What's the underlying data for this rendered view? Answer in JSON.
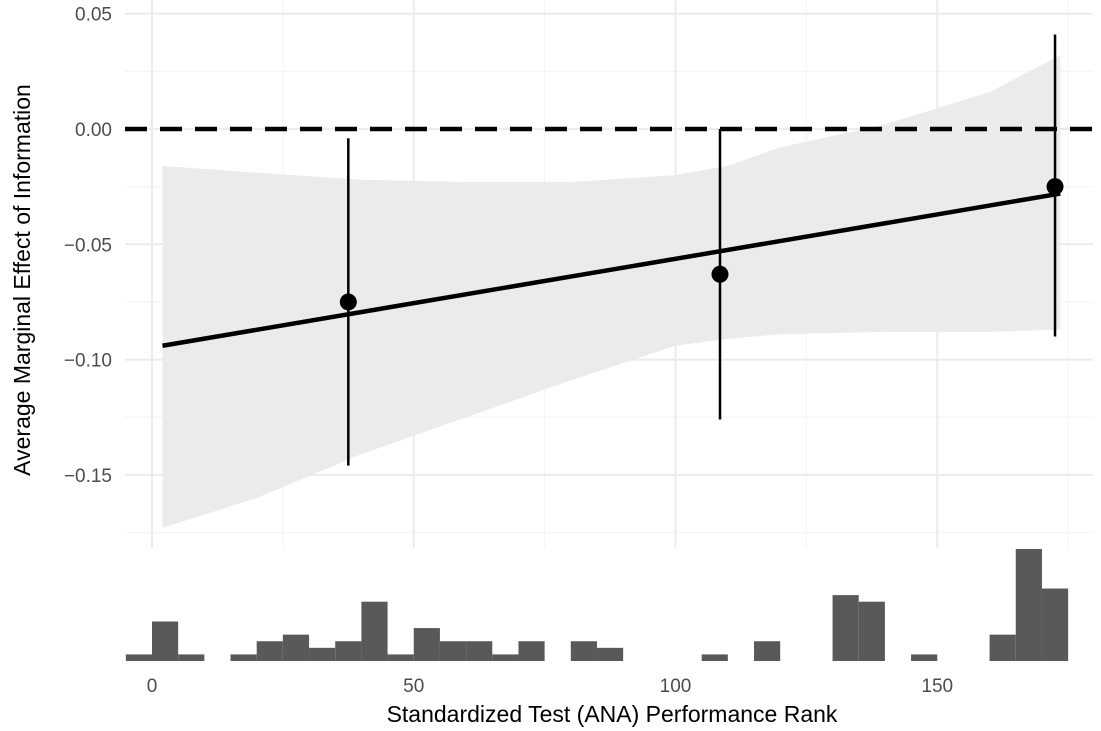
{
  "chart_data": {
    "type": "scatter",
    "xlabel": "Standardized Test (ANA) Performance Rank",
    "ylabel": "Average Marginal Effect of Information",
    "xlim": [
      -5,
      180
    ],
    "ylim": [
      -0.175,
      0.05
    ],
    "x_ticks": [
      0,
      50,
      100,
      150
    ],
    "x_tick_labels": [
      "0",
      "50",
      "100",
      "150"
    ],
    "y_ticks": [
      0.05,
      0.0,
      -0.05,
      -0.1,
      -0.15
    ],
    "y_tick_labels": [
      "0.05",
      "0.00",
      "−0.05",
      "−0.10",
      "−0.15"
    ],
    "grid": true,
    "reference_line": {
      "y": 0,
      "style": "dashed"
    },
    "points": [
      {
        "x": 37.5,
        "y": -0.075,
        "ci_low": -0.146,
        "ci_high": -0.004
      },
      {
        "x": 108.5,
        "y": -0.063,
        "ci_low": -0.126,
        "ci_high": 0.0
      },
      {
        "x": 172.5,
        "y": -0.025,
        "ci_low": -0.09,
        "ci_high": 0.041
      }
    ],
    "fit_line": {
      "x": [
        2,
        173.5
      ],
      "y": [
        -0.094,
        -0.028
      ]
    },
    "confidence_band": {
      "x": [
        2,
        20,
        40,
        60,
        80,
        100,
        110,
        120,
        140,
        160,
        173.5
      ],
      "lower": [
        -0.173,
        -0.16,
        -0.141,
        -0.125,
        -0.109,
        -0.094,
        -0.091,
        -0.089,
        -0.088,
        -0.088,
        -0.087
      ],
      "upper": [
        -0.016,
        -0.019,
        -0.022,
        -0.023,
        -0.023,
        -0.02,
        -0.016,
        -0.008,
        0.002,
        0.016,
        0.032
      ]
    },
    "histogram": {
      "bin_width": 5,
      "bins_start": [
        -5,
        0,
        5,
        10,
        15,
        20,
        25,
        30,
        35,
        40,
        45,
        50,
        55,
        60,
        65,
        70,
        75,
        80,
        85,
        90,
        95,
        100,
        105,
        110,
        115,
        120,
        125,
        130,
        135,
        140,
        145,
        150,
        155,
        160,
        165,
        170,
        175
      ],
      "counts": [
        1,
        6,
        1,
        0,
        1,
        3,
        4,
        2,
        3,
        9,
        1,
        5,
        3,
        3,
        1,
        3,
        0,
        3,
        2,
        0,
        0,
        0,
        1,
        0,
        3,
        0,
        0,
        10,
        9,
        0,
        1,
        0,
        0,
        4,
        17,
        11,
        0
      ]
    },
    "colors": {
      "points": "#000000",
      "fit_line": "#000000",
      "band": "#ebebeb",
      "bars": "#595959",
      "grid_major": "#ebebeb",
      "grid_minor": "#f5f5f5"
    }
  }
}
